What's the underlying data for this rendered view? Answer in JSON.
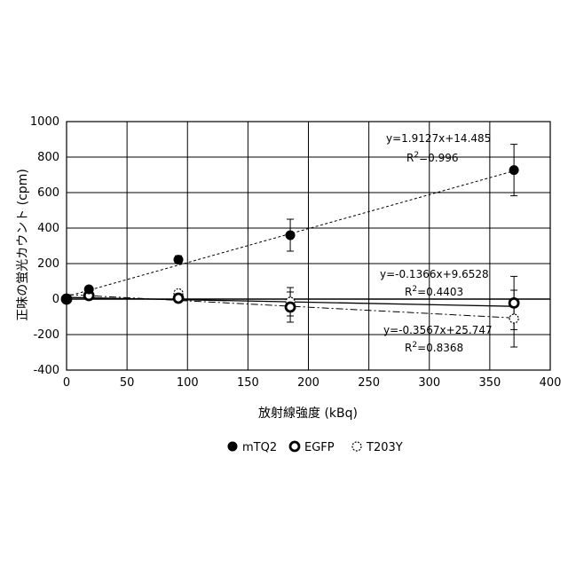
{
  "chart_data": {
    "type": "scatter",
    "xlabel": "放射線強度 (kBq)",
    "ylabel": "正味の蛍光カウント (cpm)",
    "xlim": [
      0,
      400
    ],
    "ylim": [
      -400,
      1000
    ],
    "x_ticks": [
      0,
      50,
      100,
      150,
      200,
      250,
      300,
      350,
      400
    ],
    "y_ticks": [
      -400,
      -200,
      0,
      200,
      400,
      600,
      800,
      1000
    ],
    "grid": true,
    "legend_position": "bottom",
    "series": [
      {
        "name": "mTQ2",
        "marker": "filled-circle",
        "trendline_style": "dashed",
        "points": [
          {
            "x": 0,
            "y": 0,
            "err": 0
          },
          {
            "x": 18.5,
            "y": 55,
            "err": 12
          },
          {
            "x": 92.5,
            "y": 222,
            "err": 22
          },
          {
            "x": 185,
            "y": 360,
            "err": 90
          },
          {
            "x": 370,
            "y": 727,
            "err": 145
          }
        ],
        "trendline": {
          "slope": 1.9127,
          "intercept": 14.485
        },
        "equation": "y=1.9127x+14.485",
        "r2_prefix": "R",
        "r2_sup": "2",
        "r2_value": "=0.996"
      },
      {
        "name": "EGFP",
        "marker": "open-circle-thick",
        "trendline_style": "solid",
        "points": [
          {
            "x": 0,
            "y": 0,
            "err": 0
          },
          {
            "x": 18.5,
            "y": 20,
            "err": 8
          },
          {
            "x": 92.5,
            "y": 5,
            "err": 8
          },
          {
            "x": 185,
            "y": -45,
            "err": 85
          },
          {
            "x": 370,
            "y": -22,
            "err": 150
          }
        ],
        "trendline": {
          "slope": -0.1366,
          "intercept": 9.6528
        },
        "equation": "y=-0.1366x+9.6528",
        "r2_prefix": "R",
        "r2_sup": "2",
        "r2_value": "=0.4403"
      },
      {
        "name": "T203Y",
        "marker": "open-circle-dashed",
        "trendline_style": "dash-dot",
        "points": [
          {
            "x": 0,
            "y": 0,
            "err": 0
          },
          {
            "x": 18.5,
            "y": 18,
            "err": 8
          },
          {
            "x": 92.5,
            "y": 33,
            "err": 10
          },
          {
            "x": 185,
            "y": -15,
            "err": 80
          },
          {
            "x": 370,
            "y": -110,
            "err": 160
          }
        ],
        "trendline": {
          "slope": -0.3567,
          "intercept": 25.747
        },
        "equation": "y=-0.3567x+25.747",
        "r2_prefix": "R",
        "r2_sup": "2",
        "r2_value": "=0.8368"
      }
    ]
  }
}
